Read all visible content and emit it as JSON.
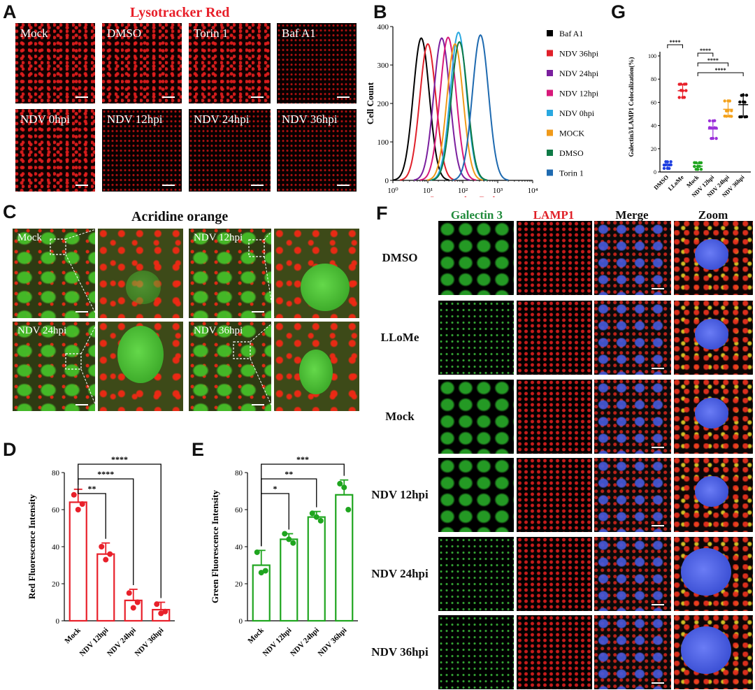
{
  "panels": {
    "A": {
      "label": "A",
      "title": "Lysotracker Red",
      "tiles": [
        "Mock",
        "DMSO",
        "Torin 1",
        "Baf A1",
        "NDV 0hpi",
        "NDV 12hpi",
        "NDV 24hpi",
        "NDV 36hpi"
      ]
    },
    "C": {
      "label": "C",
      "title": "Acridine orange",
      "tiles": [
        "Mock",
        "NDV 12hpi",
        "NDV 24hpi",
        "NDV 36hpi"
      ]
    },
    "F": {
      "label": "F",
      "columns": [
        "Galectin 3",
        "LAMP1",
        "Merge",
        "Zoom"
      ],
      "rows": [
        "DMSO",
        "LLoMe",
        "Mock",
        "NDV 12hpi",
        "NDV 24hpi",
        "NDV 36hpi"
      ]
    }
  },
  "colors": {
    "red": "#e8202a",
    "green": "#1fa51f",
    "galectin_label": "#1f8a3a",
    "lamp_label": "#e01f26",
    "purple": "#9b30d9",
    "orange": "#f4a21c",
    "blue": "#1d3ee0"
  },
  "chart_data": [
    {
      "id": "B",
      "label": "B",
      "type": "line",
      "xlabel": "Lysotracker Red",
      "ylabel": "Cell Count",
      "xscale": "log",
      "xlim": [
        1,
        10000
      ],
      "ylim": [
        0,
        400
      ],
      "xticks": [
        "10⁰",
        "10¹",
        "10²",
        "10³",
        "10⁴"
      ],
      "yticks": [
        0,
        100,
        200,
        300,
        400
      ],
      "legend_position": "right",
      "series": [
        {
          "name": "Baf A1",
          "color": "#000000",
          "peak_x": 6.5,
          "peak_y": 370
        },
        {
          "name": "NDV 36hpi",
          "color": "#e0202a",
          "peak_x": 10,
          "peak_y": 355
        },
        {
          "name": "NDV 24hpi",
          "color": "#7a1f9e",
          "peak_x": 25,
          "peak_y": 370
        },
        {
          "name": "NDV 12hpi",
          "color": "#d8197a",
          "peak_x": 38,
          "peak_y": 372
        },
        {
          "name": "NDV 0hpi",
          "color": "#29a8e0",
          "peak_x": 75,
          "peak_y": 385
        },
        {
          "name": "MOCK",
          "color": "#f09a1a",
          "peak_x": 60,
          "peak_y": 355
        },
        {
          "name": "DMSO",
          "color": "#0e7a46",
          "peak_x": 80,
          "peak_y": 360
        },
        {
          "name": "Torin 1",
          "color": "#1e6ab0",
          "peak_x": 320,
          "peak_y": 378
        }
      ]
    },
    {
      "id": "D",
      "label": "D",
      "type": "bar",
      "ylabel": "Red Fluorescence Intensity",
      "ylim": [
        0,
        80
      ],
      "yticks": [
        0,
        20,
        40,
        60,
        80
      ],
      "categories": [
        "Mock",
        "NDV 12hpi",
        "NDV 24hpi",
        "NDV 36hpi"
      ],
      "values": [
        64,
        36,
        11,
        6
      ],
      "errors": [
        7,
        6,
        6,
        4
      ],
      "points": [
        [
          68,
          60,
          63
        ],
        [
          40,
          33,
          36
        ],
        [
          15,
          7,
          10
        ],
        [
          9,
          4,
          5
        ]
      ],
      "color": "#e8202a",
      "significance": [
        {
          "from": 0,
          "to": 1,
          "label": "**"
        },
        {
          "from": 0,
          "to": 2,
          "label": "****"
        },
        {
          "from": 0,
          "to": 3,
          "label": "****"
        }
      ]
    },
    {
      "id": "E",
      "label": "E",
      "type": "bar",
      "ylabel": "Green Fluorescence Intensity",
      "ylim": [
        0,
        80
      ],
      "yticks": [
        0,
        20,
        40,
        60,
        80
      ],
      "categories": [
        "Mock",
        "NDV 12hpi",
        "NDV 24hpi",
        "NDV 36hpi"
      ],
      "values": [
        30,
        44,
        56,
        68
      ],
      "errors": [
        8,
        3,
        3,
        8
      ],
      "points": [
        [
          37,
          26,
          27
        ],
        [
          47,
          44,
          42
        ],
        [
          58,
          56,
          54
        ],
        [
          74,
          72,
          60
        ]
      ],
      "color": "#1fa51f",
      "significance": [
        {
          "from": 0,
          "to": 1,
          "label": "*"
        },
        {
          "from": 0,
          "to": 2,
          "label": "**"
        },
        {
          "from": 0,
          "to": 3,
          "label": "***"
        }
      ]
    },
    {
      "id": "G",
      "label": "G",
      "type": "scatter",
      "ylabel": "Galectin3/LAMP1 Colocalization(%)",
      "ylim": [
        0,
        100
      ],
      "yticks": [
        0,
        20,
        40,
        60,
        80,
        100
      ],
      "categories": [
        "DMSO",
        "LLoMe",
        "Mock",
        "NDV 12hpi",
        "NDV 24hpi",
        "NDV 36hpi"
      ],
      "means": [
        6,
        70,
        5,
        37,
        54,
        58
      ],
      "errors": [
        3,
        6,
        3,
        8,
        7,
        10
      ],
      "colors": [
        "#1d3ee0",
        "#e8202a",
        "#1fa51f",
        "#9b30d9",
        "#f4a21c",
        "#000000"
      ],
      "markers": [
        "circle",
        "square",
        "triangle-up",
        "triangle-down",
        "diamond",
        "circle"
      ],
      "significance": [
        {
          "from": 0,
          "to": 1,
          "label": "****"
        },
        {
          "from": 2,
          "to": 3,
          "label": "****"
        },
        {
          "from": 2,
          "to": 4,
          "label": "****"
        },
        {
          "from": 2,
          "to": 5,
          "label": "****"
        }
      ]
    }
  ]
}
